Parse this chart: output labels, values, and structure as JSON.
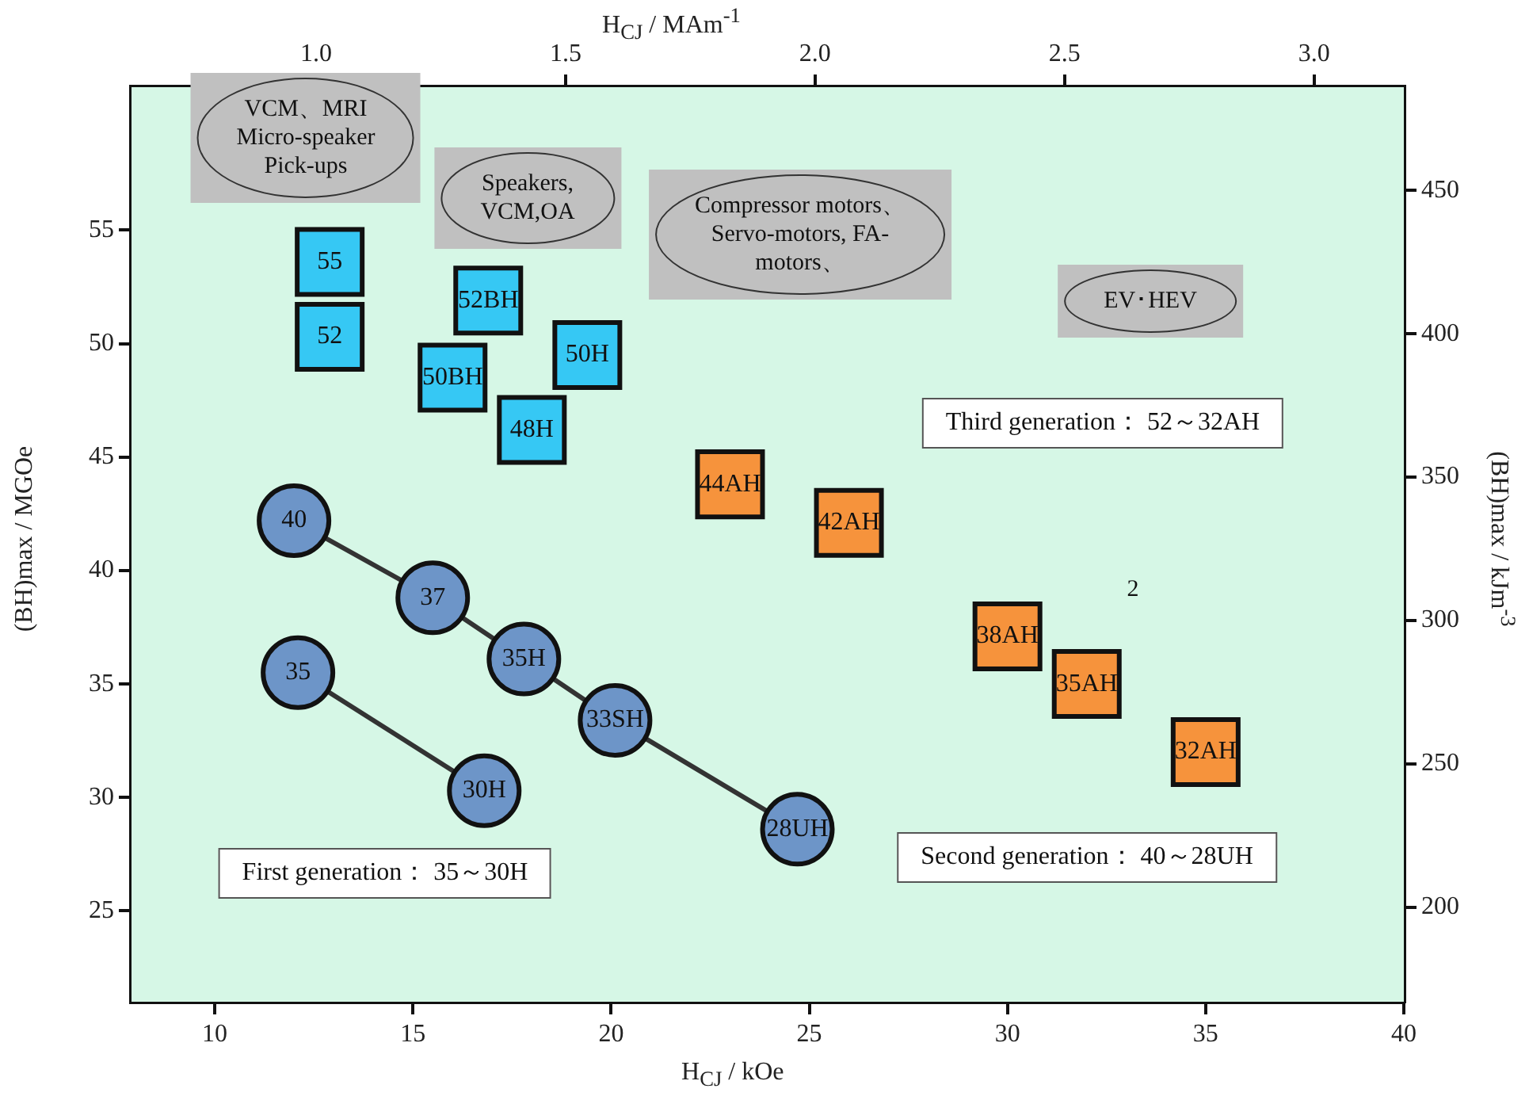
{
  "chart_data": {
    "type": "scatter",
    "xlabel": "H$_{CJ}$ / kOe",
    "x2label": "H$_{CJ}$  / MAm$^{-1}$",
    "ylabel": "(BH)max / MGOe",
    "y2label": "(BH)max / kJm$^{-3}$",
    "xlim": [
      7.9,
      40
    ],
    "xticks": [
      10,
      15,
      20,
      25,
      30,
      35,
      40
    ],
    "x2lim": [
      0.63,
      3.18
    ],
    "x2ticks": [
      {
        "value": 1,
        "label": "1.0"
      },
      {
        "value": 1.5,
        "label": "1.5"
      },
      {
        "value": 2,
        "label": "2.0"
      },
      {
        "value": 2.5,
        "label": "2.5"
      },
      {
        "value": 3,
        "label": "3.0"
      }
    ],
    "ylim": [
      21,
      61.3
    ],
    "yticks": [
      25,
      30,
      35,
      40,
      45,
      50,
      55
    ],
    "y2lim": [
      167,
      486
    ],
    "y2ticks": [
      200,
      250,
      300,
      350,
      400,
      450
    ],
    "series": [
      {
        "type": "line",
        "color": "#6d95c8",
        "marker": "circle",
        "x": [
          12.1,
          16.8
        ],
        "values": [
          35.5,
          30.3
        ]
      },
      {
        "type": "line",
        "color": "#6d95c8",
        "marker": "circle",
        "x": [
          12.0,
          15.5,
          17.8,
          20.1,
          24.7
        ],
        "values": [
          42.2,
          38.8,
          36.1,
          33.4,
          28.6
        ]
      },
      {
        "type": "scatter",
        "color": "#36c8f4",
        "marker": "square",
        "x": [
          12.9,
          12.9,
          16.0,
          16.9,
          18.0,
          19.4
        ],
        "values": [
          50.3,
          53.6,
          48.5,
          51.9,
          46.2,
          49.5
        ]
      },
      {
        "type": "scatter",
        "color": "#f6933c",
        "marker": "square",
        "x": [
          23.0,
          26.0,
          30.0,
          32.0,
          35.0
        ],
        "values": [
          43.8,
          42.1,
          37.1,
          35.0,
          32.0
        ]
      }
    ],
    "annotations": [
      {
        "text": "35",
        "x": 12.1,
        "y": 35.5
      },
      {
        "text": "30H",
        "x": 16.8,
        "y": 30.3
      },
      {
        "text": "40",
        "x": 12.0,
        "y": 42.2
      },
      {
        "text": "37",
        "x": 15.5,
        "y": 38.8
      },
      {
        "text": "35H",
        "x": 17.8,
        "y": 36.1
      },
      {
        "text": "33SH",
        "x": 20.1,
        "y": 33.4
      },
      {
        "text": "28UH",
        "x": 24.7,
        "y": 28.6
      },
      {
        "text": "52",
        "x": 12.9,
        "y": 50.3
      },
      {
        "text": "55",
        "x": 12.9,
        "y": 53.6
      },
      {
        "text": "50BH",
        "x": 16.0,
        "y": 48.5
      },
      {
        "text": "52BH",
        "x": 16.9,
        "y": 51.9
      },
      {
        "text": "48H",
        "x": 18.0,
        "y": 46.2
      },
      {
        "text": "50H",
        "x": 19.4,
        "y": 49.5
      },
      {
        "text": "44AH",
        "x": 23.0,
        "y": 43.8
      },
      {
        "text": "42AH",
        "x": 26.0,
        "y": 42.1
      },
      {
        "text": "38AH",
        "x": 30.0,
        "y": 37.1
      },
      {
        "text": "35AH",
        "x": 32.0,
        "y": 35.0
      },
      {
        "text": "32AH",
        "x": 35.0,
        "y": 32.0
      },
      "VCM、MRI\nMicro-speaker\nPick-ups",
      "Speakers,\nVCM,OA",
      "Compressor motors、\nServo-motors, FA-\nmotors、",
      "EV･HEV",
      "Third generation： 52～32AH",
      "Second generation： 40～28UH",
      "First generation： 35～30H",
      "2"
    ]
  }
}
